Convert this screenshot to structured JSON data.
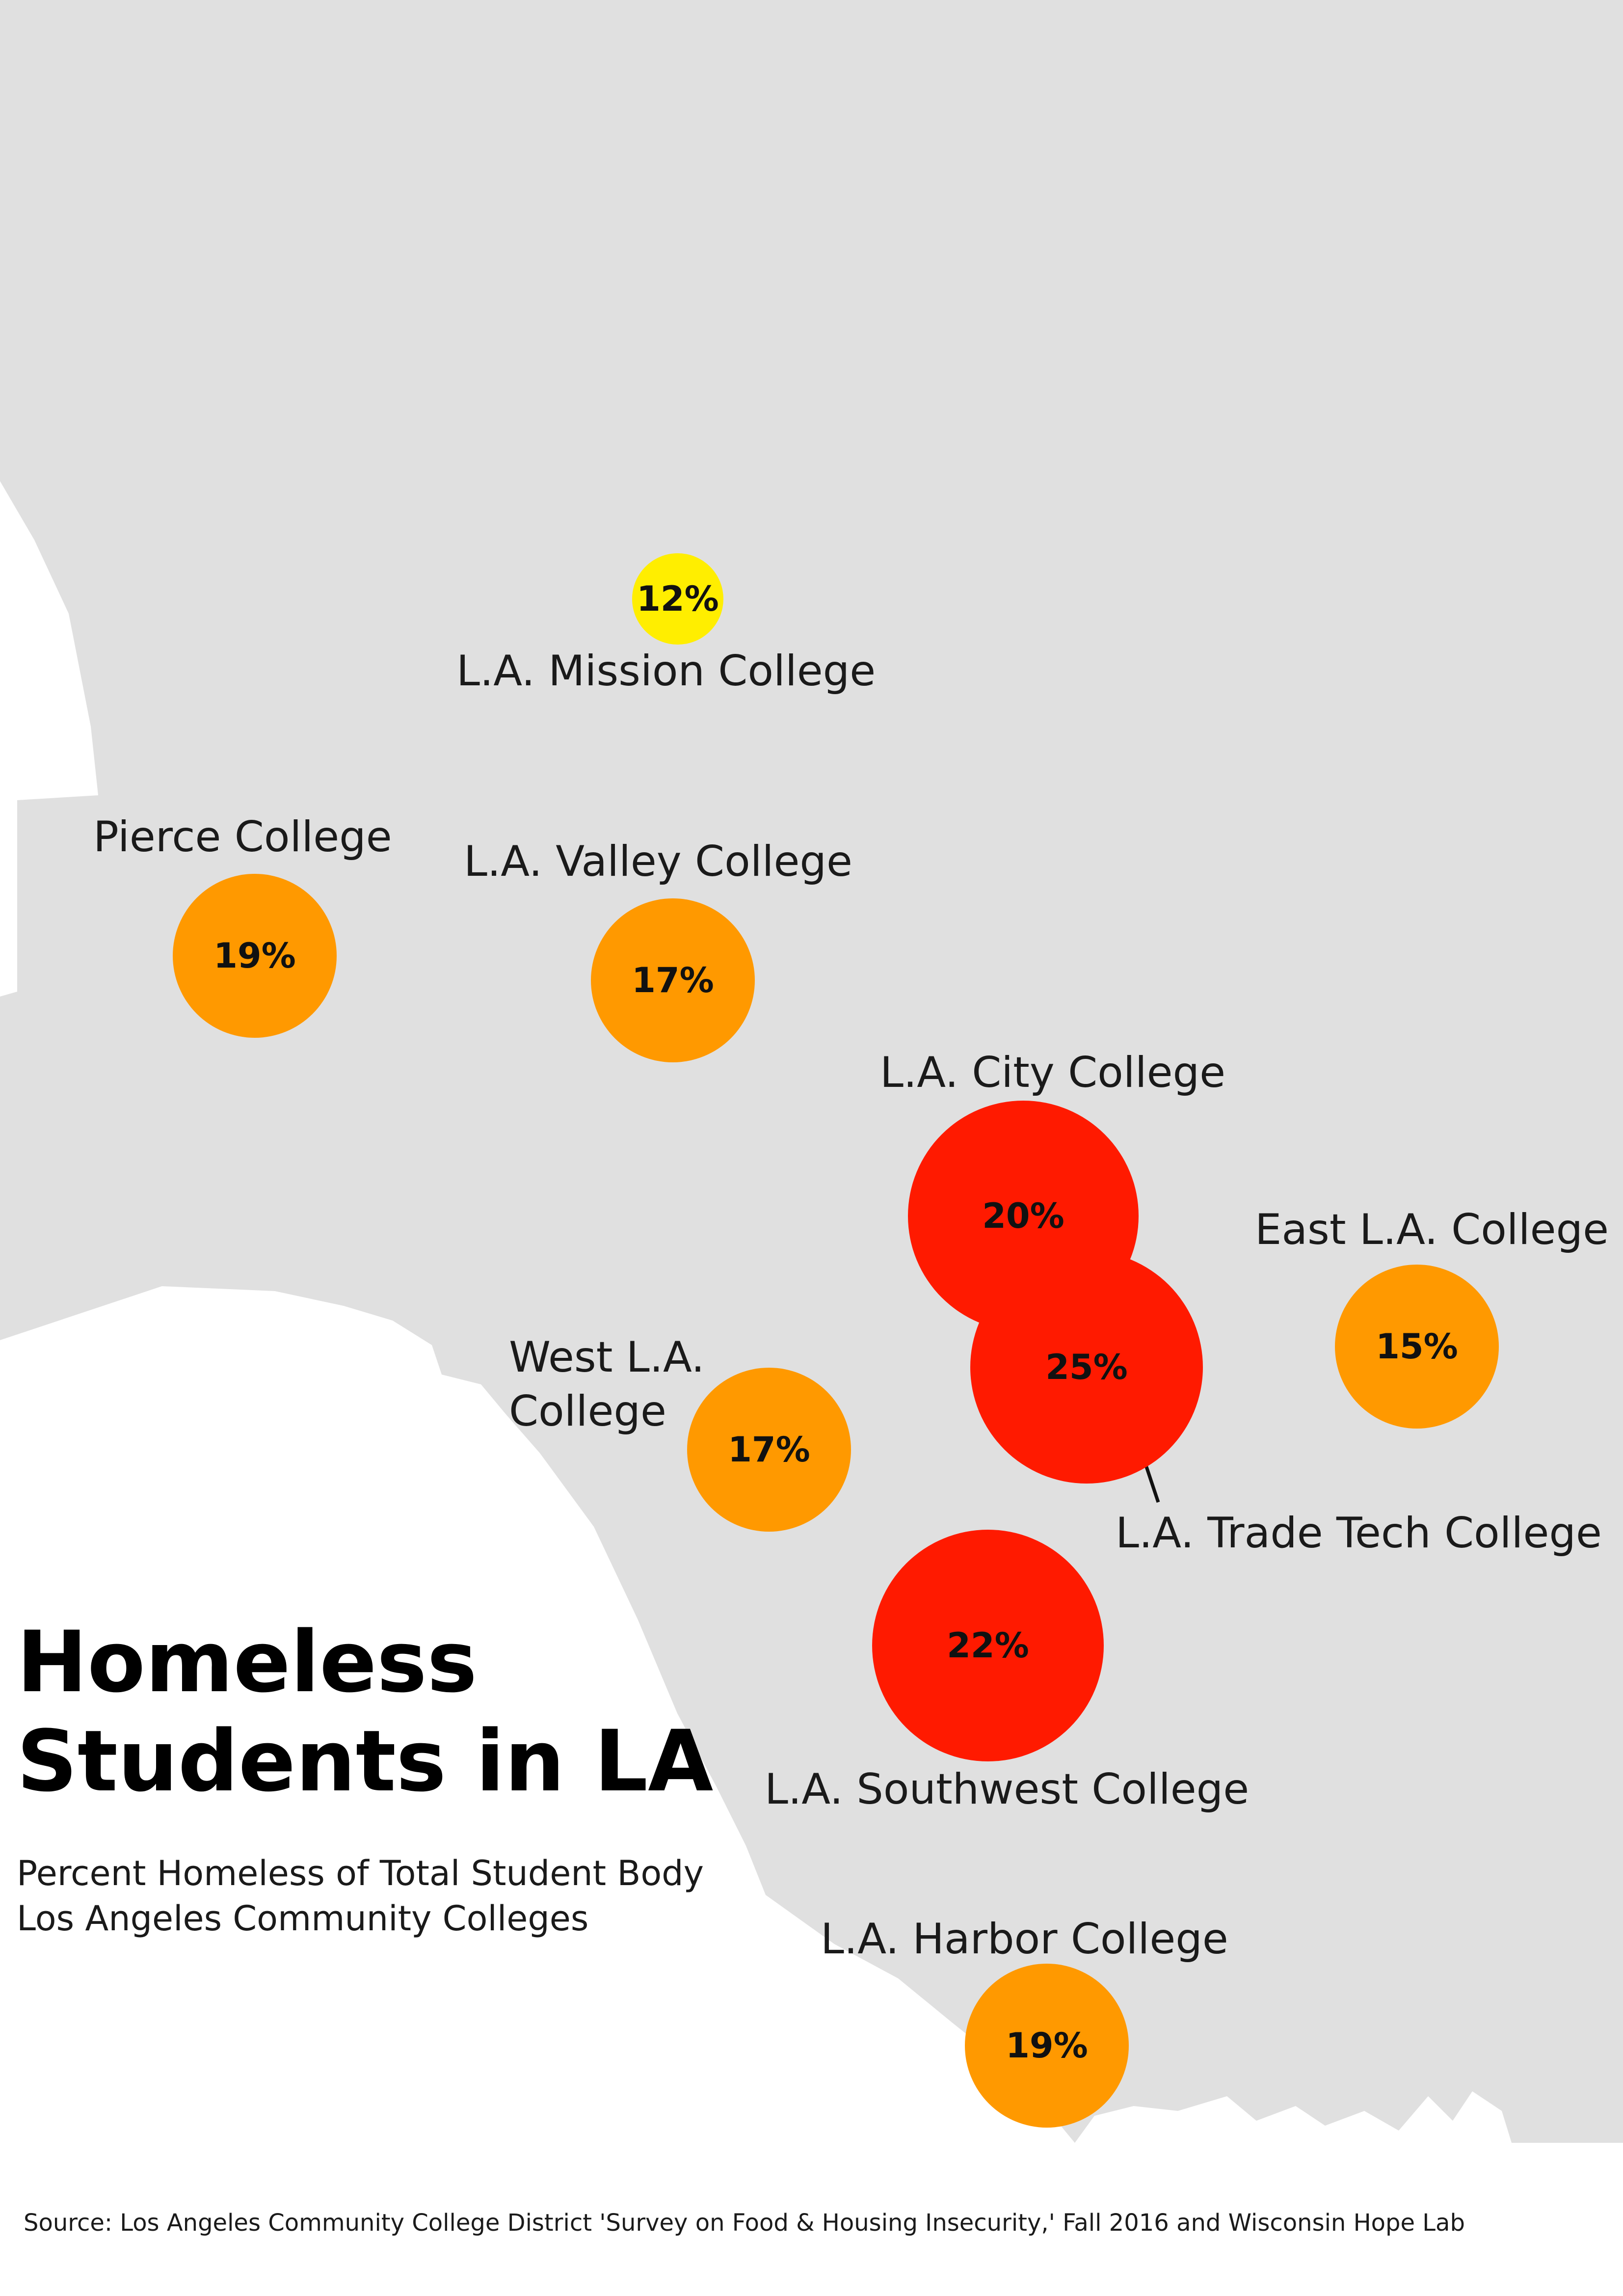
{
  "title": {
    "line1": "Homeless",
    "line2": "Students in LA"
  },
  "subtitle": {
    "line1": "Percent Homeless of Total Student Body",
    "line2": "Los Angeles Community Colleges"
  },
  "source": "Source: Los Angeles Community College District 'Survey on Food & Housing Insecurity,' Fall 2016  and Wisconsin Hope Lab",
  "colors": {
    "land": "#e0e0e0",
    "water": "#ffffff",
    "low": "#ffee00",
    "mid": "#ff9900",
    "high": "#ff1a00"
  },
  "colleges": [
    {
      "id": "mission",
      "name": "L.A. Mission College",
      "value": "12%",
      "category": "low"
    },
    {
      "id": "pierce",
      "name": "Pierce College",
      "value": "19%",
      "category": "mid"
    },
    {
      "id": "valley",
      "name": "L.A. Valley College",
      "value": "17%",
      "category": "mid"
    },
    {
      "id": "city",
      "name": "L.A. City College",
      "value": "20%",
      "category": "high"
    },
    {
      "id": "east",
      "name": "East L.A. College",
      "value": "15%",
      "category": "mid"
    },
    {
      "id": "trade",
      "name": "L.A. Trade Tech College",
      "value": "25%",
      "category": "high"
    },
    {
      "id": "west",
      "name_line1": "West L.A.",
      "name_line2": "College",
      "value": "17%",
      "category": "mid"
    },
    {
      "id": "southwest",
      "name": "L.A. Southwest College",
      "value": "22%",
      "category": "high"
    },
    {
      "id": "harbor",
      "name": "L.A. Harbor College",
      "value": "19%",
      "category": "mid"
    }
  ]
}
